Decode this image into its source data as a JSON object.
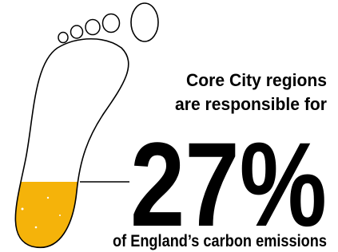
{
  "headline": {
    "line1": "Core City regions",
    "line2": "are responsible for",
    "figure": "27%",
    "line3": "of England’s carbon emissions"
  }
}
